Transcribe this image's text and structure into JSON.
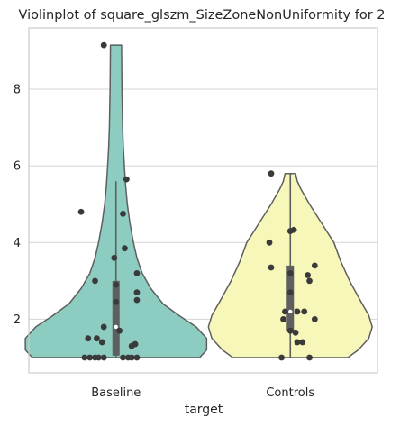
{
  "chart_data": {
    "type": "violin",
    "title": "Violinplot of square_glszm_SizeZoneNonUniformity for 2",
    "xlabel": "target",
    "ylabel": "",
    "categories": [
      "Baseline",
      "Controls"
    ],
    "ylim": [
      0.6,
      9.6
    ],
    "yticks": [
      2,
      4,
      6,
      8
    ],
    "grid": "horizontal",
    "colors": {
      "Baseline": "#8dccc1",
      "Controls": "#f7f7b9",
      "edge": "#5f5f5f",
      "points": "#3a3a3a",
      "grid": "#d9d9d9",
      "frame": "#cccccc"
    },
    "violins": [
      {
        "category": "Baseline",
        "profile": [
          [
            1.0,
            0.48
          ],
          [
            1.2,
            0.52
          ],
          [
            1.5,
            0.52
          ],
          [
            1.8,
            0.46
          ],
          [
            2.1,
            0.36
          ],
          [
            2.4,
            0.27
          ],
          [
            2.8,
            0.2
          ],
          [
            3.2,
            0.15
          ],
          [
            3.6,
            0.12
          ],
          [
            4.0,
            0.1
          ],
          [
            4.5,
            0.08
          ],
          [
            5.0,
            0.065
          ],
          [
            5.5,
            0.055
          ],
          [
            6.0,
            0.048
          ],
          [
            6.5,
            0.042
          ],
          [
            7.0,
            0.038
          ],
          [
            7.5,
            0.036
          ],
          [
            8.0,
            0.034
          ],
          [
            8.5,
            0.033
          ],
          [
            9.0,
            0.032
          ],
          [
            9.15,
            0.032
          ]
        ],
        "whisker": [
          1.0,
          5.6
        ],
        "iqr": [
          1.05,
          3.0
        ],
        "median": 1.8,
        "points": [
          [
            9.15,
            -0.07
          ],
          [
            5.65,
            0.06
          ],
          [
            4.8,
            -0.2
          ],
          [
            4.75,
            0.04
          ],
          [
            3.85,
            0.05
          ],
          [
            3.6,
            -0.01
          ],
          [
            3.2,
            0.12
          ],
          [
            3.0,
            -0.12
          ],
          [
            2.9,
            0.0
          ],
          [
            2.7,
            0.12
          ],
          [
            2.5,
            0.12
          ],
          [
            2.45,
            0.0
          ],
          [
            1.8,
            -0.07
          ],
          [
            1.7,
            0.02
          ],
          [
            1.5,
            -0.16
          ],
          [
            1.5,
            -0.11
          ],
          [
            1.4,
            -0.08
          ],
          [
            1.35,
            0.11
          ],
          [
            1.3,
            0.09
          ],
          [
            1.0,
            -0.18
          ],
          [
            1.0,
            -0.15
          ],
          [
            1.0,
            -0.12
          ],
          [
            1.0,
            -0.1
          ],
          [
            1.0,
            -0.07
          ],
          [
            1.0,
            0.04
          ],
          [
            1.0,
            0.07
          ],
          [
            1.0,
            0.09
          ],
          [
            1.0,
            0.12
          ]
        ]
      },
      {
        "category": "Controls",
        "profile": [
          [
            1.0,
            0.33
          ],
          [
            1.2,
            0.39
          ],
          [
            1.5,
            0.45
          ],
          [
            1.8,
            0.47
          ],
          [
            2.1,
            0.45
          ],
          [
            2.5,
            0.4
          ],
          [
            3.0,
            0.34
          ],
          [
            3.5,
            0.29
          ],
          [
            4.0,
            0.25
          ],
          [
            4.5,
            0.18
          ],
          [
            5.0,
            0.11
          ],
          [
            5.4,
            0.06
          ],
          [
            5.6,
            0.04
          ],
          [
            5.8,
            0.03
          ]
        ],
        "whisker": [
          1.0,
          5.8
        ],
        "iqr": [
          1.7,
          3.4
        ],
        "median": 2.2,
        "points": [
          [
            5.8,
            -0.11
          ],
          [
            4.33,
            0.02
          ],
          [
            4.3,
            0.0
          ],
          [
            4.0,
            -0.12
          ],
          [
            3.4,
            0.14
          ],
          [
            3.35,
            -0.11
          ],
          [
            3.2,
            0.0
          ],
          [
            3.15,
            0.1
          ],
          [
            3.0,
            0.11
          ],
          [
            2.7,
            0.0
          ],
          [
            2.2,
            -0.03
          ],
          [
            2.2,
            0.04
          ],
          [
            2.2,
            0.08
          ],
          [
            2.0,
            -0.04
          ],
          [
            2.0,
            0.14
          ],
          [
            1.7,
            0.0
          ],
          [
            1.65,
            0.03
          ],
          [
            1.4,
            0.04
          ],
          [
            1.4,
            0.07
          ],
          [
            1.0,
            -0.05
          ],
          [
            1.0,
            0.11
          ]
        ]
      }
    ]
  }
}
